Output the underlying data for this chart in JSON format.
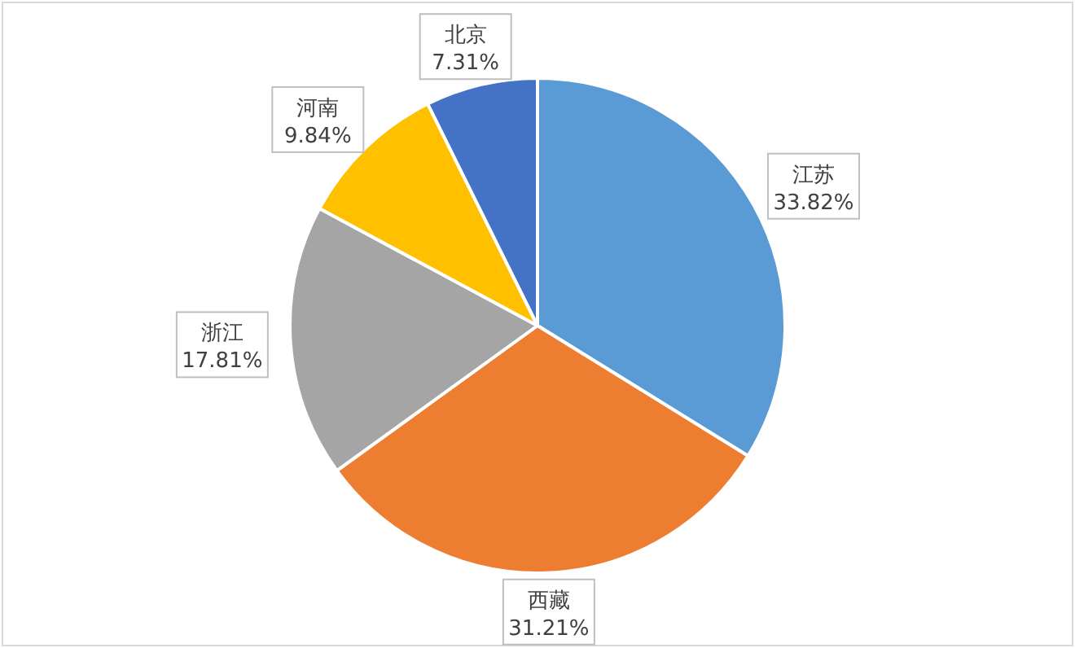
{
  "chart_data": {
    "type": "pie",
    "categories": [
      "江苏",
      "西藏",
      "浙江",
      "河南",
      "北京"
    ],
    "values": [
      33.82,
      31.21,
      17.81,
      9.84,
      7.31
    ],
    "colors": [
      "#5b9bd5",
      "#ed7d31",
      "#a5a5a5",
      "#ffc000",
      "#4472c4"
    ],
    "value_labels": [
      "33.82%",
      "31.21%",
      "17.81%",
      "9.84%",
      "7.31%"
    ]
  }
}
